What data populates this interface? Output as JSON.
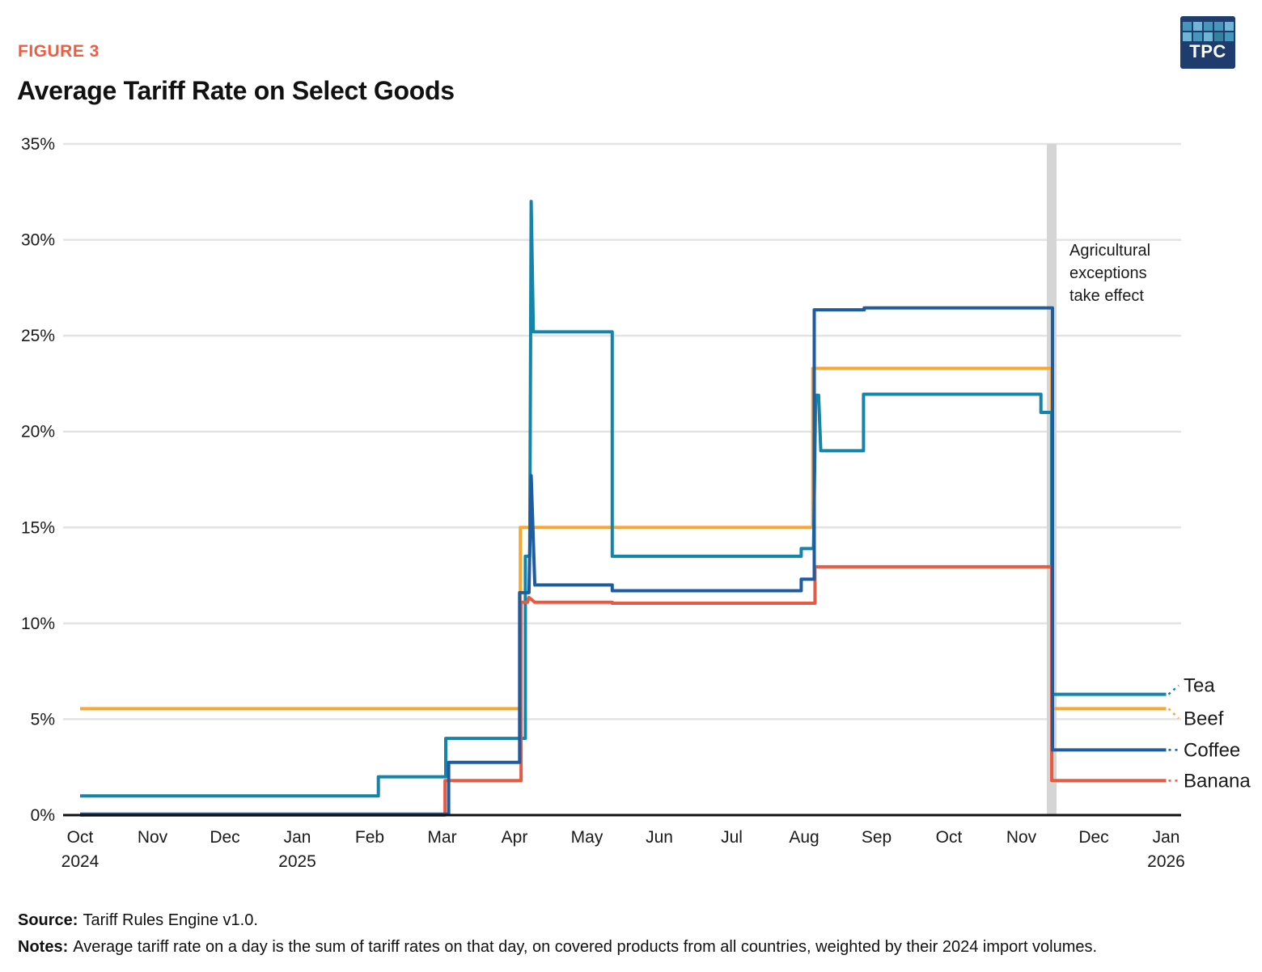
{
  "figure_label": "FIGURE 3",
  "title": "Average Tariff Rate on Select Goods",
  "logo": {
    "text": "TPC",
    "bg_color": "#1e3c6d",
    "square_colors": [
      "#4796bc",
      "#6fb5d8",
      "#4796bc",
      "#4796bc",
      "#6fb5d8",
      "#6fb5d8",
      "#4796bc",
      "#6fb5d8",
      "#35809f",
      "#4796bc"
    ]
  },
  "footer": {
    "source_label": "Source:",
    "source_text": "Tariff Rules Engine v1.0.",
    "notes_label": "Notes:",
    "notes_text": "Average tariff rate on a day is the sum of tariff rates on that day, on covered products from all countries, weighted by their 2024 import volumes."
  },
  "chart_data": {
    "type": "line",
    "title": "Average Tariff Rate on Select Goods",
    "x_unit": "months since Oct 2024",
    "x_axis": {
      "months": [
        "Oct",
        "Nov",
        "Dec",
        "Jan",
        "Feb",
        "Mar",
        "Apr",
        "May",
        "Jun",
        "Jul",
        "Aug",
        "Sep",
        "Oct",
        "Nov",
        "Dec",
        "Jan"
      ],
      "years": {
        "0": "2024",
        "3": "2025",
        "15": "2026"
      }
    },
    "y_axis": {
      "ticks": [
        "0%",
        "5%",
        "10%",
        "15%",
        "20%",
        "25%",
        "30%",
        "35%"
      ],
      "min": 0,
      "max": 35,
      "grid": true,
      "grid_color": "#e3e3e3",
      "axis_color": "#111111"
    },
    "event_band": {
      "month": 13.42,
      "color": "#d5d5d5",
      "label": "Agricultural exceptions take effect",
      "label_lines": [
        "Agricultural",
        "exceptions",
        "take effect"
      ],
      "label_color": "#1a1a1a"
    },
    "legend_position": "right",
    "series": [
      {
        "name": "Beef",
        "color": "#faa632",
        "label_color": "#ad760e",
        "points": [
          [
            0,
            5.55
          ],
          [
            6.08,
            5.55
          ],
          [
            6.08,
            15.0
          ],
          [
            10.12,
            15.0
          ],
          [
            10.12,
            23.3
          ],
          [
            13.42,
            23.3
          ],
          [
            13.42,
            5.55
          ],
          [
            15.0,
            5.55
          ]
        ]
      },
      {
        "name": "Tea",
        "color": "#1484a8",
        "label_color": "#1287a8",
        "points": [
          [
            0,
            1.0
          ],
          [
            4.12,
            1.0
          ],
          [
            4.12,
            2.0
          ],
          [
            5.05,
            2.0
          ],
          [
            5.05,
            4.0
          ],
          [
            6.15,
            4.0
          ],
          [
            6.15,
            13.5
          ],
          [
            6.21,
            13.5
          ],
          [
            6.23,
            32.0
          ],
          [
            6.26,
            25.2
          ],
          [
            7.35,
            25.2
          ],
          [
            7.35,
            13.5
          ],
          [
            9.96,
            13.5
          ],
          [
            9.96,
            13.9
          ],
          [
            10.13,
            13.9
          ],
          [
            10.16,
            21.9
          ],
          [
            10.2,
            21.9
          ],
          [
            10.23,
            19.0
          ],
          [
            10.82,
            19.0
          ],
          [
            10.82,
            21.95
          ],
          [
            13.27,
            21.95
          ],
          [
            13.27,
            21.0
          ],
          [
            13.42,
            21.0
          ],
          [
            13.42,
            6.3
          ],
          [
            15.0,
            6.3
          ]
        ]
      },
      {
        "name": "Banana",
        "color": "#e85a44",
        "label_color": "#df4f38",
        "points": [
          [
            0,
            0.0
          ],
          [
            5.04,
            0.0
          ],
          [
            5.04,
            1.8
          ],
          [
            6.09,
            1.8
          ],
          [
            6.09,
            11.1
          ],
          [
            6.18,
            11.1
          ],
          [
            6.2,
            11.35
          ],
          [
            6.28,
            11.1
          ],
          [
            7.35,
            11.1
          ],
          [
            7.35,
            11.05
          ],
          [
            10.15,
            11.05
          ],
          [
            10.15,
            12.95
          ],
          [
            13.42,
            12.95
          ],
          [
            13.42,
            1.8
          ],
          [
            15.0,
            1.8
          ]
        ]
      },
      {
        "name": "Coffee",
        "color": "#1f5c9f",
        "label_color": "#2a6cb4",
        "points": [
          [
            0,
            0.05
          ],
          [
            5.09,
            0.05
          ],
          [
            5.09,
            2.75
          ],
          [
            6.07,
            2.75
          ],
          [
            6.07,
            11.6
          ],
          [
            6.2,
            11.6
          ],
          [
            6.23,
            17.7
          ],
          [
            6.28,
            12.0
          ],
          [
            7.35,
            12.0
          ],
          [
            7.35,
            11.7
          ],
          [
            9.96,
            11.7
          ],
          [
            9.96,
            12.3
          ],
          [
            10.14,
            12.3
          ],
          [
            10.14,
            26.35
          ],
          [
            10.83,
            26.35
          ],
          [
            10.83,
            26.45
          ],
          [
            13.43,
            26.45
          ],
          [
            13.43,
            3.4
          ],
          [
            15.0,
            3.4
          ]
        ]
      }
    ]
  }
}
